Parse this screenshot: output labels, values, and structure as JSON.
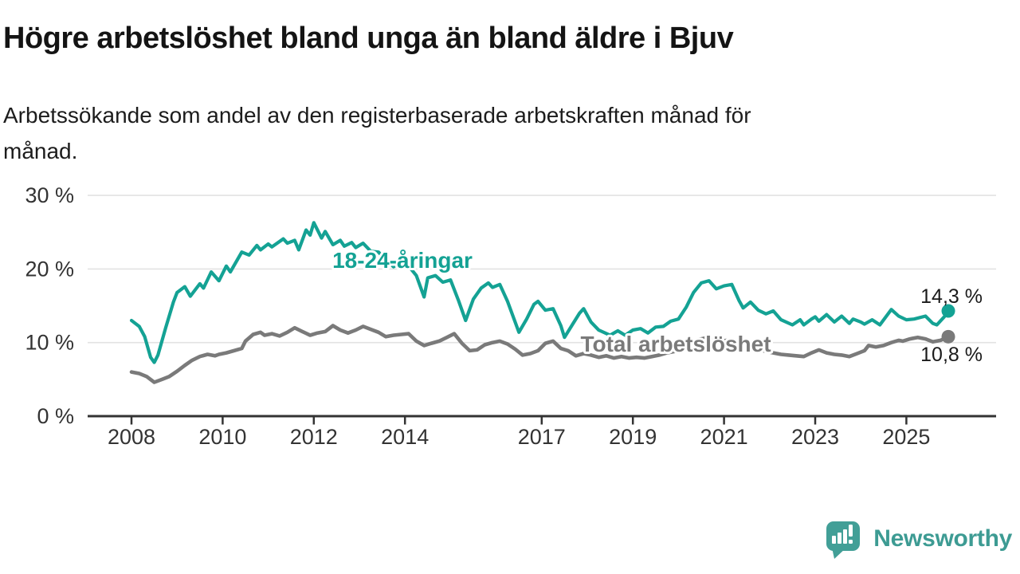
{
  "header": {
    "title": "Högre arbetslöshet bland unga än bland äldre i Bjuv",
    "subtitle": "Arbetssökande som andel av den registerbaserade arbetskraften månad för månad.",
    "subtitle_lines": [
      "Arbetssökande som andel av den registerbaserade arbetskraften månad för",
      "månad."
    ]
  },
  "branding": {
    "wordmark": "Newsworthy",
    "logo_icon": "speech-bubble-bar-chart-exclamation",
    "logo_color": "#429f97",
    "wordmark_color": "#3d9b93"
  },
  "colors": {
    "young_line": "#14a294",
    "total_line": "#7a7a7a",
    "grid": "#e2e2e2",
    "axis": "#333333",
    "text": "#1a1a1a"
  },
  "chart_data": {
    "type": "line",
    "title": "Högre arbetslöshet bland unga än bland äldre i Bjuv",
    "subtitle": "Arbetssökande som andel av den registerbaserade arbetskraften månad för månad.",
    "x_unit": "year (monthly data)",
    "y_unit": "percent of registered labour force",
    "ylim": [
      0,
      31
    ],
    "xlim": [
      2007.0,
      2026.5
    ],
    "grid": "horizontal",
    "legend_position": "inline-labels",
    "y_ticks": [
      {
        "value": 0,
        "label": "0 %"
      },
      {
        "value": 10,
        "label": "10 %"
      },
      {
        "value": 20,
        "label": "20 %"
      },
      {
        "value": 30,
        "label": "30 %"
      }
    ],
    "x_ticks": [
      {
        "year": 2008,
        "label": "2008"
      },
      {
        "year": 2010,
        "label": "2010"
      },
      {
        "year": 2012,
        "label": "2012"
      },
      {
        "year": 2014,
        "label": "2014"
      },
      {
        "year": 2017,
        "label": "2017"
      },
      {
        "year": 2019,
        "label": "2019"
      },
      {
        "year": 2021,
        "label": "2021"
      },
      {
        "year": 2023,
        "label": "2023"
      },
      {
        "year": 2025,
        "label": "2025"
      }
    ],
    "series": [
      {
        "name": "18-24-åringar",
        "color": "#14a294",
        "end_value": 14.3,
        "end_label": "14,3 %",
        "points": [
          [
            2008.0,
            13.0
          ],
          [
            2008.17,
            12.2
          ],
          [
            2008.29,
            10.8
          ],
          [
            2008.42,
            8.0
          ],
          [
            2008.5,
            7.3
          ],
          [
            2008.58,
            8.3
          ],
          [
            2008.75,
            12.0
          ],
          [
            2008.92,
            15.5
          ],
          [
            2009.0,
            16.8
          ],
          [
            2009.17,
            17.6
          ],
          [
            2009.29,
            16.3
          ],
          [
            2009.5,
            18.0
          ],
          [
            2009.58,
            17.4
          ],
          [
            2009.75,
            19.6
          ],
          [
            2009.92,
            18.4
          ],
          [
            2010.08,
            20.4
          ],
          [
            2010.17,
            19.6
          ],
          [
            2010.42,
            22.3
          ],
          [
            2010.58,
            21.9
          ],
          [
            2010.75,
            23.2
          ],
          [
            2010.83,
            22.6
          ],
          [
            2011.0,
            23.4
          ],
          [
            2011.08,
            23.0
          ],
          [
            2011.33,
            24.1
          ],
          [
            2011.42,
            23.5
          ],
          [
            2011.58,
            23.9
          ],
          [
            2011.67,
            22.6
          ],
          [
            2011.83,
            25.3
          ],
          [
            2011.92,
            24.6
          ],
          [
            2012.0,
            26.3
          ],
          [
            2012.17,
            24.2
          ],
          [
            2012.25,
            25.1
          ],
          [
            2012.42,
            23.3
          ],
          [
            2012.58,
            23.9
          ],
          [
            2012.67,
            23.1
          ],
          [
            2012.83,
            23.6
          ],
          [
            2012.92,
            22.9
          ],
          [
            2013.08,
            23.5
          ],
          [
            2013.25,
            22.4
          ],
          [
            2013.42,
            22.3
          ],
          [
            2013.58,
            21.2
          ],
          [
            2013.75,
            20.3
          ],
          [
            2013.92,
            20.9
          ],
          [
            2014.08,
            20.4
          ],
          [
            2014.25,
            19.1
          ],
          [
            2014.42,
            16.2
          ],
          [
            2014.5,
            18.8
          ],
          [
            2014.67,
            19.1
          ],
          [
            2014.83,
            18.2
          ],
          [
            2015.0,
            18.5
          ],
          [
            2015.17,
            15.8
          ],
          [
            2015.33,
            13.0
          ],
          [
            2015.5,
            15.9
          ],
          [
            2015.67,
            17.4
          ],
          [
            2015.83,
            18.1
          ],
          [
            2015.92,
            17.5
          ],
          [
            2016.08,
            17.9
          ],
          [
            2016.25,
            15.6
          ],
          [
            2016.5,
            11.4
          ],
          [
            2016.67,
            13.2
          ],
          [
            2016.83,
            15.2
          ],
          [
            2016.92,
            15.6
          ],
          [
            2017.08,
            14.4
          ],
          [
            2017.25,
            14.6
          ],
          [
            2017.42,
            12.3
          ],
          [
            2017.5,
            10.7
          ],
          [
            2017.67,
            12.4
          ],
          [
            2017.83,
            14.0
          ],
          [
            2017.92,
            14.6
          ],
          [
            2018.08,
            12.8
          ],
          [
            2018.25,
            11.7
          ],
          [
            2018.5,
            11.0
          ],
          [
            2018.67,
            11.6
          ],
          [
            2018.83,
            11.0
          ],
          [
            2019.0,
            11.7
          ],
          [
            2019.17,
            11.9
          ],
          [
            2019.33,
            11.3
          ],
          [
            2019.5,
            12.1
          ],
          [
            2019.67,
            12.2
          ],
          [
            2019.83,
            12.9
          ],
          [
            2020.0,
            13.2
          ],
          [
            2020.17,
            14.8
          ],
          [
            2020.33,
            16.8
          ],
          [
            2020.5,
            18.1
          ],
          [
            2020.67,
            18.4
          ],
          [
            2020.83,
            17.3
          ],
          [
            2021.0,
            17.7
          ],
          [
            2021.17,
            17.9
          ],
          [
            2021.33,
            15.7
          ],
          [
            2021.42,
            14.7
          ],
          [
            2021.58,
            15.5
          ],
          [
            2021.75,
            14.4
          ],
          [
            2021.92,
            13.9
          ],
          [
            2022.08,
            14.3
          ],
          [
            2022.25,
            13.1
          ],
          [
            2022.5,
            12.4
          ],
          [
            2022.67,
            13.1
          ],
          [
            2022.75,
            12.4
          ],
          [
            2022.92,
            13.2
          ],
          [
            2023.0,
            13.5
          ],
          [
            2023.08,
            12.9
          ],
          [
            2023.25,
            13.8
          ],
          [
            2023.42,
            12.8
          ],
          [
            2023.58,
            13.6
          ],
          [
            2023.75,
            12.6
          ],
          [
            2023.83,
            13.2
          ],
          [
            2024.0,
            12.8
          ],
          [
            2024.08,
            12.5
          ],
          [
            2024.25,
            13.1
          ],
          [
            2024.42,
            12.4
          ],
          [
            2024.67,
            14.5
          ],
          [
            2024.83,
            13.6
          ],
          [
            2025.0,
            13.1
          ],
          [
            2025.17,
            13.2
          ],
          [
            2025.42,
            13.6
          ],
          [
            2025.58,
            12.6
          ],
          [
            2025.67,
            12.4
          ],
          [
            2025.83,
            13.5
          ],
          [
            2025.92,
            14.3
          ]
        ]
      },
      {
        "name": "Total arbetslöshet",
        "color": "#7a7a7a",
        "end_value": 10.8,
        "end_label": "10,8 %",
        "points": [
          [
            2008.0,
            6.0
          ],
          [
            2008.17,
            5.8
          ],
          [
            2008.33,
            5.4
          ],
          [
            2008.5,
            4.6
          ],
          [
            2008.67,
            5.0
          ],
          [
            2008.83,
            5.4
          ],
          [
            2009.0,
            6.1
          ],
          [
            2009.17,
            6.9
          ],
          [
            2009.33,
            7.6
          ],
          [
            2009.5,
            8.1
          ],
          [
            2009.67,
            8.4
          ],
          [
            2009.83,
            8.2
          ],
          [
            2009.92,
            8.4
          ],
          [
            2010.08,
            8.6
          ],
          [
            2010.25,
            8.9
          ],
          [
            2010.42,
            9.2
          ],
          [
            2010.5,
            10.2
          ],
          [
            2010.67,
            11.1
          ],
          [
            2010.83,
            11.4
          ],
          [
            2010.92,
            11.0
          ],
          [
            2011.08,
            11.2
          ],
          [
            2011.25,
            10.9
          ],
          [
            2011.42,
            11.4
          ],
          [
            2011.58,
            12.0
          ],
          [
            2011.75,
            11.5
          ],
          [
            2011.92,
            11.0
          ],
          [
            2012.08,
            11.3
          ],
          [
            2012.25,
            11.5
          ],
          [
            2012.42,
            12.3
          ],
          [
            2012.58,
            11.7
          ],
          [
            2012.75,
            11.3
          ],
          [
            2012.92,
            11.7
          ],
          [
            2013.08,
            12.2
          ],
          [
            2013.25,
            11.8
          ],
          [
            2013.42,
            11.4
          ],
          [
            2013.58,
            10.8
          ],
          [
            2013.75,
            11.0
          ],
          [
            2013.92,
            11.1
          ],
          [
            2014.08,
            11.2
          ],
          [
            2014.25,
            10.2
          ],
          [
            2014.42,
            9.6
          ],
          [
            2014.58,
            9.9
          ],
          [
            2014.75,
            10.2
          ],
          [
            2014.92,
            10.7
          ],
          [
            2015.08,
            11.2
          ],
          [
            2015.25,
            9.9
          ],
          [
            2015.42,
            8.9
          ],
          [
            2015.58,
            9.0
          ],
          [
            2015.75,
            9.7
          ],
          [
            2015.92,
            10.0
          ],
          [
            2016.08,
            10.2
          ],
          [
            2016.25,
            9.8
          ],
          [
            2016.42,
            9.1
          ],
          [
            2016.58,
            8.3
          ],
          [
            2016.75,
            8.5
          ],
          [
            2016.92,
            8.9
          ],
          [
            2017.08,
            9.9
          ],
          [
            2017.25,
            10.2
          ],
          [
            2017.42,
            9.2
          ],
          [
            2017.58,
            8.9
          ],
          [
            2017.75,
            8.2
          ],
          [
            2017.92,
            8.5
          ],
          [
            2018.08,
            8.3
          ],
          [
            2018.25,
            8.0
          ],
          [
            2018.42,
            8.2
          ],
          [
            2018.58,
            7.9
          ],
          [
            2018.75,
            8.1
          ],
          [
            2018.92,
            7.9
          ],
          [
            2019.08,
            8.0
          ],
          [
            2019.25,
            7.9
          ],
          [
            2019.42,
            8.1
          ],
          [
            2019.58,
            8.3
          ],
          [
            2019.75,
            8.6
          ],
          [
            2019.92,
            8.8
          ],
          [
            2020.08,
            9.3
          ],
          [
            2020.25,
            9.9
          ],
          [
            2020.42,
            10.4
          ],
          [
            2020.58,
            10.6
          ],
          [
            2020.75,
            10.4
          ],
          [
            2020.92,
            10.2
          ],
          [
            2021.08,
            10.3
          ],
          [
            2021.25,
            10.0
          ],
          [
            2021.42,
            9.7
          ],
          [
            2021.58,
            9.4
          ],
          [
            2021.75,
            9.1
          ],
          [
            2021.92,
            8.8
          ],
          [
            2022.08,
            8.6
          ],
          [
            2022.25,
            8.4
          ],
          [
            2022.42,
            8.3
          ],
          [
            2022.58,
            8.2
          ],
          [
            2022.75,
            8.1
          ],
          [
            2022.92,
            8.6
          ],
          [
            2023.08,
            9.0
          ],
          [
            2023.25,
            8.6
          ],
          [
            2023.42,
            8.4
          ],
          [
            2023.58,
            8.3
          ],
          [
            2023.75,
            8.1
          ],
          [
            2023.92,
            8.5
          ],
          [
            2024.08,
            8.9
          ],
          [
            2024.17,
            9.6
          ],
          [
            2024.33,
            9.4
          ],
          [
            2024.5,
            9.6
          ],
          [
            2024.67,
            10.0
          ],
          [
            2024.83,
            10.3
          ],
          [
            2024.92,
            10.2
          ],
          [
            2025.08,
            10.5
          ],
          [
            2025.25,
            10.7
          ],
          [
            2025.42,
            10.5
          ],
          [
            2025.58,
            10.1
          ],
          [
            2025.75,
            10.3
          ],
          [
            2025.92,
            10.8
          ]
        ]
      }
    ]
  }
}
